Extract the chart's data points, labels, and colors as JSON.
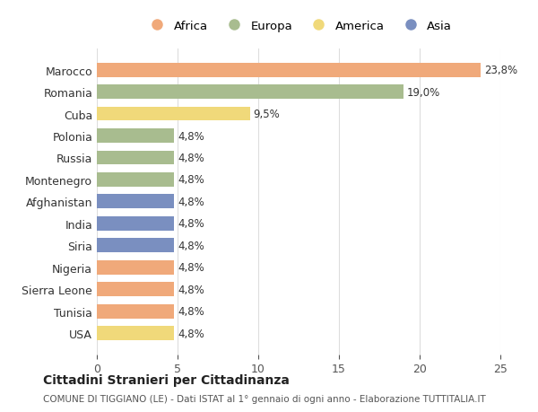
{
  "countries": [
    "Marocco",
    "Romania",
    "Cuba",
    "Polonia",
    "Russia",
    "Montenegro",
    "Afghanistan",
    "India",
    "Siria",
    "Nigeria",
    "Sierra Leone",
    "Tunisia",
    "USA"
  ],
  "values": [
    23.8,
    19.0,
    9.5,
    4.8,
    4.8,
    4.8,
    4.8,
    4.8,
    4.8,
    4.8,
    4.8,
    4.8,
    4.8
  ],
  "labels": [
    "23,8%",
    "19,0%",
    "9,5%",
    "4,8%",
    "4,8%",
    "4,8%",
    "4,8%",
    "4,8%",
    "4,8%",
    "4,8%",
    "4,8%",
    "4,8%",
    "4,8%"
  ],
  "continents": [
    "Africa",
    "Europa",
    "America",
    "Europa",
    "Europa",
    "Europa",
    "Asia",
    "Asia",
    "Asia",
    "Africa",
    "Africa",
    "Africa",
    "America"
  ],
  "continent_colors": {
    "Africa": "#F0A97A",
    "Europa": "#A8BC8F",
    "America": "#F0D97A",
    "Asia": "#7A8FC0"
  },
  "legend_order": [
    "Africa",
    "Europa",
    "America",
    "Asia"
  ],
  "title": "Cittadini Stranieri per Cittadinanza",
  "subtitle": "COMUNE DI TIGGIANO (LE) - Dati ISTAT al 1° gennaio di ogni anno - Elaborazione TUTTITALIA.IT",
  "xlim": [
    0,
    25
  ],
  "xticks": [
    0,
    5,
    10,
    15,
    20,
    25
  ],
  "background_color": "#ffffff",
  "grid_color": "#dddddd"
}
